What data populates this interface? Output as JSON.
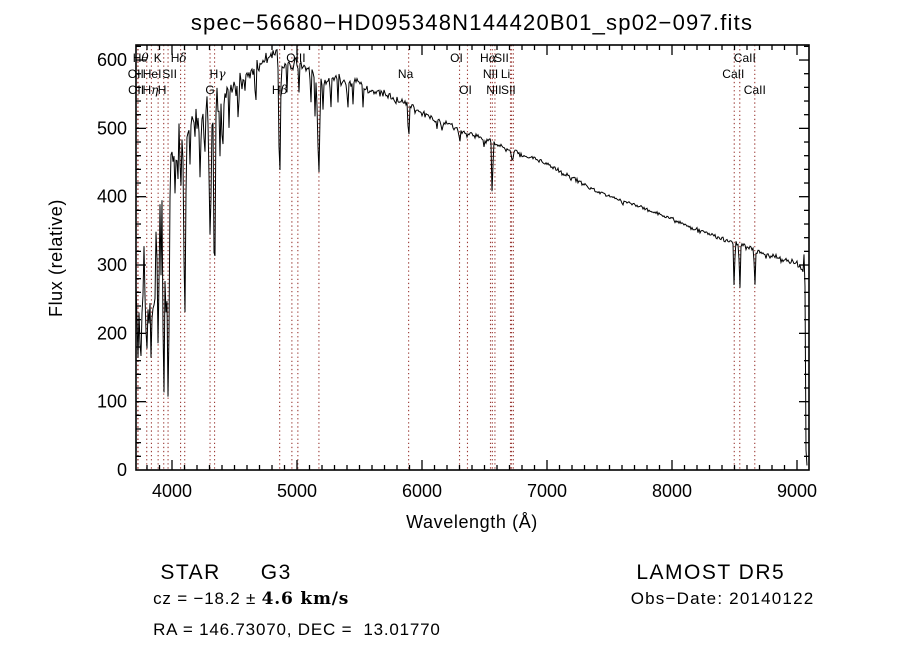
{
  "chart_data": {
    "type": "line",
    "title": "spec−56680−HD095348N144420B01_sp02−097.fits",
    "xlabel": "Wavelength (Å)",
    "ylabel": "Flux (relative)",
    "x_range_angstrom": [
      3712,
      9096
    ],
    "y_range_flux": [
      0,
      622
    ],
    "x_ticks": [
      4000,
      5000,
      6000,
      7000,
      8000,
      9000
    ],
    "y_ticks": [
      0,
      100,
      200,
      300,
      400,
      500,
      600
    ],
    "x_minor_tick_step": 100,
    "y_minor_tick_step": 20,
    "grid": false,
    "legend": "none",
    "series_description": "Observed stellar flux (relative) vs wavelength in Angstroms; black jagged trace",
    "colors": {
      "spectrum": "#000000",
      "line_marker": "#9b3a35",
      "text": "#000000",
      "background": "#ffffff"
    },
    "continuum_points": [
      [
        3712,
        295
      ],
      [
        3740,
        270
      ],
      [
        3765,
        295
      ],
      [
        3790,
        310
      ],
      [
        3815,
        300
      ],
      [
        3845,
        330
      ],
      [
        3875,
        365
      ],
      [
        3905,
        415
      ],
      [
        3935,
        430
      ],
      [
        3965,
        435
      ],
      [
        3995,
        460
      ],
      [
        4030,
        488
      ],
      [
        4080,
        500
      ],
      [
        4130,
        505
      ],
      [
        4180,
        512
      ],
      [
        4240,
        518
      ],
      [
        4300,
        532
      ],
      [
        4360,
        543
      ],
      [
        4430,
        550
      ],
      [
        4500,
        561
      ],
      [
        4560,
        567
      ],
      [
        4620,
        581
      ],
      [
        4700,
        594
      ],
      [
        4760,
        601
      ],
      [
        4820,
        607
      ],
      [
        4880,
        596
      ],
      [
        4940,
        591
      ],
      [
        5000,
        596
      ],
      [
        5060,
        589
      ],
      [
        5120,
        586
      ],
      [
        5180,
        570
      ],
      [
        5250,
        573
      ],
      [
        5330,
        574
      ],
      [
        5410,
        566
      ],
      [
        5490,
        566
      ],
      [
        5570,
        557
      ],
      [
        5650,
        551
      ],
      [
        5730,
        547
      ],
      [
        5810,
        541
      ],
      [
        5890,
        536
      ],
      [
        5970,
        525
      ],
      [
        6050,
        517
      ],
      [
        6130,
        511
      ],
      [
        6210,
        506
      ],
      [
        6290,
        500
      ],
      [
        6370,
        494
      ],
      [
        6450,
        488
      ],
      [
        6530,
        482
      ],
      [
        6610,
        476
      ],
      [
        6690,
        469
      ],
      [
        6770,
        463
      ],
      [
        6850,
        458
      ],
      [
        6930,
        453
      ],
      [
        7010,
        447
      ],
      [
        7090,
        439
      ],
      [
        7170,
        431
      ],
      [
        7250,
        423
      ],
      [
        7330,
        415
      ],
      [
        7410,
        408
      ],
      [
        7490,
        402
      ],
      [
        7570,
        397
      ],
      [
        7650,
        392
      ],
      [
        7730,
        387
      ],
      [
        7810,
        381
      ],
      [
        7890,
        375
      ],
      [
        7970,
        370
      ],
      [
        8050,
        363
      ],
      [
        8130,
        356
      ],
      [
        8210,
        351
      ],
      [
        8290,
        346
      ],
      [
        8370,
        341
      ],
      [
        8450,
        336
      ],
      [
        8530,
        332
      ],
      [
        8610,
        326
      ],
      [
        8690,
        320
      ],
      [
        8770,
        315
      ],
      [
        8850,
        310
      ],
      [
        8930,
        306
      ],
      [
        9000,
        305
      ],
      [
        9030,
        297
      ],
      [
        9048,
        290
      ],
      [
        9058,
        320
      ],
      [
        9064,
        268
      ],
      [
        9069,
        60
      ],
      [
        9074,
        10
      ],
      [
        9080,
        7
      ]
    ],
    "absorption_features": [
      [
        3727,
        160,
        6
      ],
      [
        3750,
        135,
        5
      ],
      [
        3798,
        175,
        7
      ],
      [
        3820,
        235,
        5
      ],
      [
        3835,
        150,
        7
      ],
      [
        3860,
        250,
        5
      ],
      [
        3889,
        205,
        7
      ],
      [
        3912,
        280,
        5
      ],
      [
        3934,
        85,
        7
      ],
      [
        3950,
        230,
        4
      ],
      [
        3969,
        105,
        8
      ],
      [
        4026,
        400,
        5
      ],
      [
        4045,
        425,
        4
      ],
      [
        4068,
        415,
        4
      ],
      [
        4102,
        225,
        7
      ],
      [
        4144,
        448,
        4
      ],
      [
        4226,
        428,
        5
      ],
      [
        4260,
        465,
        4
      ],
      [
        4305,
        338,
        8
      ],
      [
        4340,
        263,
        6
      ],
      [
        4383,
        458,
        4
      ],
      [
        4404,
        478,
        4
      ],
      [
        4457,
        500,
        3
      ],
      [
        4531,
        518,
        4
      ],
      [
        4668,
        542,
        4
      ],
      [
        4861,
        424,
        6
      ],
      [
        4920,
        553,
        3
      ],
      [
        5015,
        552,
        3
      ],
      [
        5110,
        538,
        4
      ],
      [
        5145,
        518,
        4
      ],
      [
        5167,
        468,
        5
      ],
      [
        5176,
        437,
        6
      ],
      [
        5208,
        528,
        4
      ],
      [
        5270,
        532,
        4
      ],
      [
        5328,
        538,
        3
      ],
      [
        5404,
        532,
        3
      ],
      [
        5446,
        536,
        3
      ],
      [
        5528,
        530,
        3
      ],
      [
        5893,
        482,
        5
      ],
      [
        6122,
        498,
        3
      ],
      [
        6162,
        498,
        3
      ],
      [
        6300,
        481,
        3
      ],
      [
        6363,
        487,
        3
      ],
      [
        6495,
        473,
        3
      ],
      [
        6563,
        409,
        4
      ],
      [
        6717,
        453,
        3
      ],
      [
        6731,
        456,
        3
      ],
      [
        7190,
        424,
        4
      ],
      [
        7605,
        388,
        5
      ],
      [
        8226,
        346,
        3
      ],
      [
        8498,
        272,
        4
      ],
      [
        8542,
        266,
        4
      ],
      [
        8662,
        270,
        4
      ],
      [
        8752,
        310,
        3
      ]
    ],
    "noise_amplitude_points": [
      [
        3712,
        75
      ],
      [
        3930,
        68
      ],
      [
        3985,
        42
      ],
      [
        4015,
        28
      ],
      [
        4200,
        26
      ],
      [
        4400,
        20
      ],
      [
        4520,
        16
      ],
      [
        4700,
        14
      ],
      [
        4860,
        12
      ],
      [
        5000,
        10
      ],
      [
        5200,
        8
      ],
      [
        5600,
        6.5
      ],
      [
        6000,
        5
      ],
      [
        6600,
        4
      ],
      [
        7200,
        3.3
      ],
      [
        8000,
        3
      ],
      [
        8400,
        3.5
      ],
      [
        8800,
        4.5
      ],
      [
        9030,
        5
      ],
      [
        9060,
        4
      ],
      [
        9080,
        2
      ]
    ],
    "spectral_line_markers": [
      {
        "wavelength": 3726.0,
        "label": "OII",
        "row": 2,
        "dx": -2
      },
      {
        "wavelength": 3728.8,
        "label": "OII",
        "row": 3,
        "dx": -2
      },
      {
        "wavelength": 3797.9,
        "label": "Hθ",
        "row": 1,
        "dx": -6
      },
      {
        "wavelength": 3835.4,
        "label": "Hη",
        "row": 3,
        "dx": -1
      },
      {
        "wavelength": 3889.0,
        "label": "HeI",
        "row": 2,
        "dx": -6
      },
      {
        "wavelength": 3933.7,
        "label": "K",
        "row": 1,
        "dx": -6
      },
      {
        "wavelength": 3968.5,
        "label": "H",
        "row": 3,
        "dx": -6
      },
      {
        "wavelength": 4068.6,
        "label": "SII",
        "row": 2,
        "dx": -11
      },
      {
        "wavelength": 4101.7,
        "label": "Hδ",
        "row": 1,
        "dx": -6
      },
      {
        "wavelength": 4304.4,
        "label": "G",
        "row": 3,
        "dx": 0
      },
      {
        "wavelength": 4340.5,
        "label": "Hγ",
        "row": 2,
        "dx": 3
      },
      {
        "wavelength": 4861.3,
        "label": "Hβ",
        "row": 3,
        "dx": 0
      },
      {
        "wavelength": 4959.0,
        "label": "OIII",
        "row": 1,
        "dx": 4
      },
      {
        "wavelength": 5006.8,
        "label": "",
        "row": 0,
        "dx": 0
      },
      {
        "wavelength": 5175.3,
        "label": "",
        "row": 0,
        "dx": 0
      },
      {
        "wavelength": 5893.0,
        "label": "Na",
        "row": 2,
        "dx": -3
      },
      {
        "wavelength": 6300.2,
        "label": "OI",
        "row": 1,
        "dx": -3
      },
      {
        "wavelength": 6363.8,
        "label": "OI",
        "row": 3,
        "dx": -2
      },
      {
        "wavelength": 6548.0,
        "label": "NII",
        "row": 2,
        "dx": 0
      },
      {
        "wavelength": 6562.8,
        "label": "Hα",
        "row": 1,
        "dx": -4
      },
      {
        "wavelength": 6583.5,
        "label": "NII",
        "row": 3,
        "dx": -1
      },
      {
        "wavelength": 6707.9,
        "label": "Li",
        "row": 2,
        "dx": -5
      },
      {
        "wavelength": 6716.4,
        "label": "SII",
        "row": 1,
        "dx": -10
      },
      {
        "wavelength": 6730.8,
        "label": "SII",
        "row": 3,
        "dx": -5
      },
      {
        "wavelength": 8498.0,
        "label": "CaII",
        "row": 2,
        "dx": -1
      },
      {
        "wavelength": 8542.1,
        "label": "CaII",
        "row": 1,
        "dx": 5
      },
      {
        "wavelength": 8662.1,
        "label": "CaII",
        "row": 3,
        "dx": 0
      }
    ]
  },
  "annotations": {
    "object_category": "STAR",
    "object_subclass": "G3",
    "cz_prefix": "cz = −18.2 ± ",
    "cz_emph": "4.6 km/s",
    "ra_dec": "RA = 146.73070, DEC =  13.01770",
    "survey": "LAMOST DR5",
    "obs_date": "Obs−Date: 20140122"
  }
}
